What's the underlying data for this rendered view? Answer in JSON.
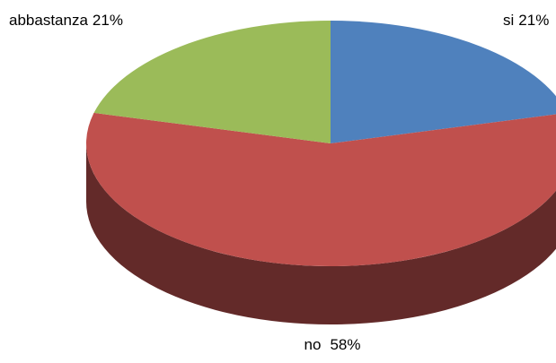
{
  "chart_data": {
    "type": "pie",
    "categories": [
      "si",
      "no",
      "abbastanza"
    ],
    "values": [
      21,
      58,
      21
    ],
    "value_labels": [
      "21%",
      "58%",
      "21%"
    ],
    "colors": [
      "#4f81bd",
      "#c0504d",
      "#9bbb59"
    ],
    "side_color": "#632a29"
  }
}
